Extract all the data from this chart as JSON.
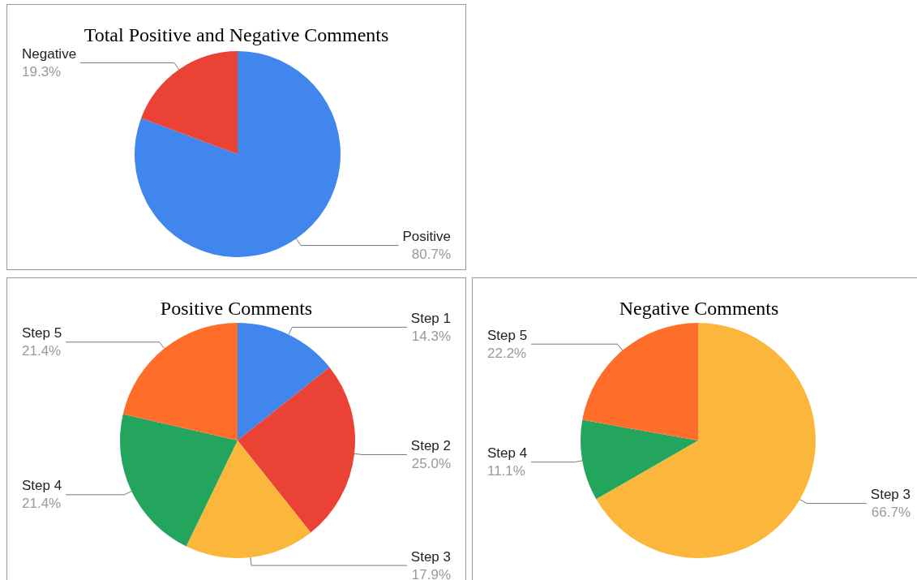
{
  "chart_data": [
    {
      "type": "pie",
      "title": "Total Positive and Negative Comments",
      "categories": [
        "Positive",
        "Negative"
      ],
      "values": [
        80.7,
        19.3
      ],
      "colors": [
        "#4186ec",
        "#ea4335"
      ],
      "value_labels": [
        "80.7%",
        "19.3%"
      ]
    },
    {
      "type": "pie",
      "title": "Positive Comments",
      "categories": [
        "Step 1",
        "Step 2",
        "Step 3",
        "Step 4",
        "Step 5"
      ],
      "values": [
        14.3,
        25.0,
        17.9,
        21.4,
        21.4
      ],
      "colors": [
        "#4186ec",
        "#ea4335",
        "#fbb73c",
        "#24a55d",
        "#ff6d2a"
      ],
      "value_labels": [
        "14.3%",
        "25.0%",
        "17.9%",
        "21.4%",
        "21.4%"
      ]
    },
    {
      "type": "pie",
      "title": "Negative Comments",
      "categories": [
        "Step 3",
        "Step 4",
        "Step 5"
      ],
      "values": [
        66.7,
        11.1,
        22.2
      ],
      "colors": [
        "#fbb73c",
        "#24a55d",
        "#ff6d2a"
      ],
      "value_labels": [
        "66.7%",
        "11.1%",
        "22.2%"
      ]
    }
  ]
}
